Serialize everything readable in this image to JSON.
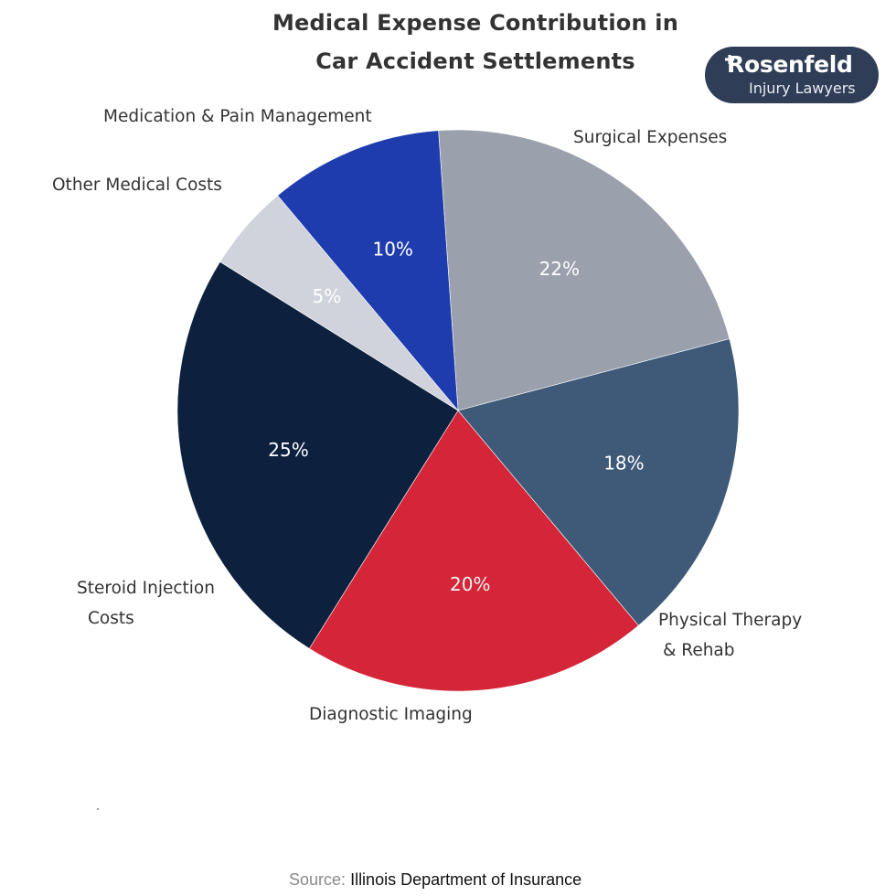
{
  "title_lines": [
    "Medical Expense Contribution in",
    "Car Accident Settlements"
  ],
  "logo": {
    "brand": "Rosenfeld",
    "tagline": "Injury Lawyers"
  },
  "source": {
    "label": "Source:",
    "value": "Illinois Department of Insurance"
  },
  "chart_data": {
    "type": "pie",
    "title": "Medical Expense Contribution in Car Accident Settlements",
    "start_angle": "clockwise from approximately 5 o'clock of top-left; Medication & Pain Management begins near top",
    "slices": [
      {
        "label_lines": [
          "Surgical Expenses"
        ],
        "value": 22,
        "pct_label": "22%",
        "color": "#9aa1ad",
        "pct_color": "#ffffff"
      },
      {
        "label_lines": [
          "Physical Therapy",
          "& Rehab"
        ],
        "value": 18,
        "pct_label": "18%",
        "color": "#3e5a78",
        "pct_color": "#ffffff"
      },
      {
        "label_lines": [
          "Diagnostic Imaging"
        ],
        "value": 20,
        "pct_label": "20%",
        "color": "#d42638",
        "pct_color": "#f3f3f3"
      },
      {
        "label_lines": [
          "Steroid Injection",
          "Costs"
        ],
        "value": 25,
        "pct_label": "25%",
        "color": "#0d213f",
        "pct_color": "#ffffff"
      },
      {
        "label_lines": [
          "Other Medical Costs"
        ],
        "value": 5,
        "pct_label": "5%",
        "color": "#d0d3db",
        "pct_color": "#ffffff"
      },
      {
        "label_lines": [
          "Medication & Pain Management"
        ],
        "value": 10,
        "pct_label": "10%",
        "color": "#1e3cae",
        "pct_color": "#ffffff"
      }
    ]
  }
}
